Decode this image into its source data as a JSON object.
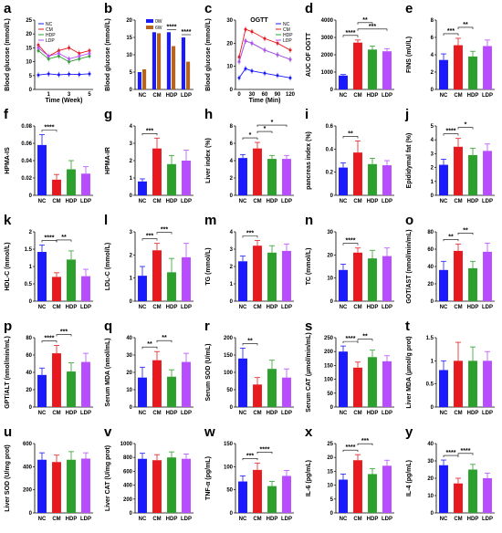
{
  "figure": {
    "colors": {
      "NC": "#1a1aff",
      "CM": "#e8191e",
      "HDP": "#2ca02c",
      "LDP": "#b84dff"
    },
    "categories": [
      "NC",
      "CM",
      "HDP",
      "LDP"
    ]
  },
  "chart_data": [
    {
      "id": "a",
      "type": "line",
      "ylabel": "Blood glucose (mmol/L)",
      "xlabel": "Time (Week)",
      "x": [
        0,
        1,
        2,
        3,
        4,
        5
      ],
      "xticks": [
        "1",
        "3",
        "5"
      ],
      "xtick_values": [
        1,
        3,
        5
      ],
      "ylim": [
        0,
        25
      ],
      "yticks": [
        0,
        5,
        10,
        15,
        20,
        25
      ],
      "legend": [
        "NC",
        "CM",
        "HDP",
        "LDP"
      ],
      "series": [
        {
          "name": "NC",
          "values": [
            5.2,
            5.6,
            5.3,
            5.5,
            5.4,
            5.6
          ]
        },
        {
          "name": "CM",
          "values": [
            16,
            12,
            14,
            15,
            13,
            14
          ]
        },
        {
          "name": "HDP",
          "values": [
            14,
            11,
            12,
            10,
            11,
            12
          ]
        },
        {
          "name": "LDP",
          "values": [
            15,
            12,
            13,
            11,
            12,
            13
          ]
        }
      ]
    },
    {
      "id": "b",
      "type": "bar",
      "ylabel": "Blood glucose (mmol/L)",
      "categories": [
        "NC",
        "CM",
        "HDP",
        "LDP"
      ],
      "ylim": [
        0,
        20
      ],
      "yticks": [
        0,
        5,
        10,
        15,
        20
      ],
      "legend": [
        "0W",
        "6W"
      ],
      "series": [
        {
          "name": "0W",
          "values": [
            5.0,
            16.5,
            16.5,
            15.0
          ],
          "color": "#1a1aff"
        },
        {
          "name": "6W",
          "values": [
            5.8,
            16.2,
            12.5,
            8.0
          ],
          "color": "#b5651d"
        }
      ],
      "sig": [
        {
          "label": "****",
          "from": 2,
          "to": 2
        },
        {
          "label": "****",
          "from": 3,
          "to": 3
        }
      ]
    },
    {
      "id": "c",
      "type": "line",
      "ylabel": "Blood glucose (mmol/L)",
      "xlabel": "Time (Min)",
      "title": "OGTT",
      "x": [
        0,
        15,
        30,
        60,
        90,
        120
      ],
      "xticks": [
        "0",
        "30",
        "60",
        "90",
        "120"
      ],
      "xtick_values": [
        0,
        30,
        60,
        90,
        120
      ],
      "ylim": [
        0,
        30
      ],
      "yticks": [
        0,
        10,
        20,
        30
      ],
      "legend": [
        "NC",
        "CM",
        "HDP",
        "LDP"
      ],
      "series": [
        {
          "name": "NC",
          "values": [
            5,
            9,
            8,
            7,
            6,
            5
          ]
        },
        {
          "name": "CM",
          "values": [
            14,
            26,
            25,
            22,
            20,
            17
          ]
        },
        {
          "name": "HDP",
          "values": [
            12,
            21,
            20,
            17,
            15,
            13
          ]
        },
        {
          "name": "LDP",
          "values": [
            12,
            21,
            20,
            17,
            15,
            13
          ]
        }
      ]
    },
    {
      "id": "d",
      "type": "bar",
      "ylabel": "AUC OF OGTT",
      "ylim": [
        0,
        4000
      ],
      "yticks": [
        0,
        1000,
        2000,
        3000,
        4000
      ],
      "values": [
        800,
        2700,
        2300,
        2200
      ],
      "errors": [
        60,
        150,
        200,
        150
      ],
      "sig": [
        {
          "label": "****",
          "from": 0,
          "to": 1
        },
        {
          "label": "***",
          "from": 1,
          "to": 3
        },
        {
          "label": "**",
          "from": 1,
          "to": 2
        }
      ]
    },
    {
      "id": "e",
      "type": "bar",
      "ylabel": "FINS (mU/L)",
      "ylim": [
        0,
        8
      ],
      "yticks": [
        0,
        2,
        4,
        6,
        8
      ],
      "values": [
        3.4,
        5.1,
        3.8,
        5.0
      ],
      "errors": [
        0.7,
        0.8,
        0.6,
        0.7
      ],
      "sig": [
        {
          "label": "***",
          "from": 0,
          "to": 1
        },
        {
          "label": "**",
          "from": 1,
          "to": 2
        }
      ]
    },
    {
      "id": "f",
      "type": "bar",
      "ylabel": "HPMA-IS",
      "ylim": [
        0,
        0.08
      ],
      "yticks": [
        0,
        0.02,
        0.04,
        0.06,
        0.08
      ],
      "values": [
        0.058,
        0.018,
        0.03,
        0.025
      ],
      "errors": [
        0.012,
        0.006,
        0.01,
        0.008
      ],
      "sig": [
        {
          "label": "****",
          "from": 0,
          "to": 1
        }
      ]
    },
    {
      "id": "g",
      "type": "bar",
      "ylabel": "HPMA-IR",
      "ylim": [
        0,
        4
      ],
      "yticks": [
        0,
        1,
        2,
        3,
        4
      ],
      "values": [
        0.8,
        2.7,
        1.8,
        2.0
      ],
      "errors": [
        0.15,
        0.6,
        0.5,
        0.6
      ],
      "sig": [
        {
          "label": "***",
          "from": 0,
          "to": 1
        }
      ]
    },
    {
      "id": "h",
      "type": "bar",
      "ylabel": "Liver index (%)",
      "ylim": [
        0,
        8
      ],
      "yticks": [
        0,
        2,
        4,
        6,
        8
      ],
      "values": [
        4.3,
        5.4,
        4.2,
        4.2
      ],
      "errors": [
        0.4,
        0.7,
        0.4,
        0.4
      ],
      "sig": [
        {
          "label": "*",
          "from": 0,
          "to": 1
        },
        {
          "label": "*",
          "from": 1,
          "to": 2
        },
        {
          "label": "*",
          "from": 1,
          "to": 3
        }
      ]
    },
    {
      "id": "i",
      "type": "bar",
      "ylabel": "pancreas index (%)",
      "ylim": [
        0,
        0.6
      ],
      "yticks": [
        0,
        0.2,
        0.4,
        0.6
      ],
      "values": [
        0.24,
        0.37,
        0.27,
        0.26
      ],
      "errors": [
        0.04,
        0.1,
        0.05,
        0.04
      ],
      "sig": [
        {
          "label": "**",
          "from": 0,
          "to": 1
        }
      ]
    },
    {
      "id": "j",
      "type": "bar",
      "ylabel": "Epididymal fat (%)",
      "ylim": [
        0,
        5
      ],
      "yticks": [
        0,
        1,
        2,
        3,
        4,
        5
      ],
      "values": [
        2.2,
        3.5,
        2.9,
        3.2
      ],
      "errors": [
        0.4,
        0.6,
        0.5,
        0.5
      ],
      "sig": [
        {
          "label": "****",
          "from": 0,
          "to": 1
        },
        {
          "label": "*",
          "from": 1,
          "to": 2
        }
      ]
    },
    {
      "id": "k",
      "type": "bar",
      "ylabel": "HDL-C (mmol/L)",
      "ylim": [
        0,
        2.0
      ],
      "yticks": [
        0,
        0.5,
        1.0,
        1.5,
        2.0
      ],
      "values": [
        1.42,
        0.7,
        1.2,
        0.72
      ],
      "errors": [
        0.2,
        0.12,
        0.25,
        0.2
      ],
      "sig": [
        {
          "label": "****",
          "from": 0,
          "to": 1
        },
        {
          "label": "**",
          "from": 1,
          "to": 2
        }
      ]
    },
    {
      "id": "l",
      "type": "bar",
      "ylabel": "LDL-C (mmol/L)",
      "ylim": [
        0,
        3
      ],
      "yticks": [
        0,
        1,
        2,
        3
      ],
      "values": [
        1.1,
        2.2,
        1.25,
        1.9
      ],
      "errors": [
        0.4,
        0.3,
        0.6,
        0.6
      ],
      "sig": [
        {
          "label": "***",
          "from": 0,
          "to": 1
        },
        {
          "label": "***",
          "from": 1,
          "to": 2
        }
      ]
    },
    {
      "id": "m",
      "type": "bar",
      "ylabel": "TG (mmol/L)",
      "ylim": [
        0,
        4
      ],
      "yticks": [
        0,
        1,
        2,
        3,
        4
      ],
      "values": [
        2.3,
        3.2,
        2.8,
        2.9
      ],
      "errors": [
        0.3,
        0.3,
        0.4,
        0.4
      ],
      "sig": [
        {
          "label": "***",
          "from": 0,
          "to": 1
        }
      ]
    },
    {
      "id": "n",
      "type": "bar",
      "ylabel": "TC (mmol/L)",
      "ylim": [
        0,
        30
      ],
      "yticks": [
        0,
        10,
        20,
        30
      ],
      "values": [
        13.5,
        21,
        18.5,
        19.5
      ],
      "errors": [
        2.5,
        2.0,
        3.5,
        3.5
      ],
      "sig": [
        {
          "label": "****",
          "from": 0,
          "to": 1
        }
      ]
    },
    {
      "id": "o",
      "type": "bar",
      "ylabel": "GOT/AST (nmol/min/mL)",
      "ylim": [
        0,
        80
      ],
      "yticks": [
        0,
        20,
        40,
        60,
        80
      ],
      "values": [
        36,
        58,
        38,
        57
      ],
      "errors": [
        10,
        8,
        8,
        10
      ],
      "sig": [
        {
          "label": "**",
          "from": 0,
          "to": 1
        },
        {
          "label": "**",
          "from": 1,
          "to": 2
        }
      ]
    },
    {
      "id": "p",
      "type": "bar",
      "ylabel": "GPT/ALT (nmol/min/mL)",
      "ylim": [
        0,
        80
      ],
      "yticks": [
        0,
        20,
        40,
        60,
        80
      ],
      "values": [
        37,
        62,
        41,
        52
      ],
      "errors": [
        8,
        9,
        10,
        10
      ],
      "sig": [
        {
          "label": "****",
          "from": 0,
          "to": 1
        },
        {
          "label": "***",
          "from": 1,
          "to": 2
        }
      ]
    },
    {
      "id": "q",
      "type": "bar",
      "ylabel": "Serum MDA (nmol/mL)",
      "ylim": [
        0,
        40
      ],
      "yticks": [
        0,
        10,
        20,
        30,
        40
      ],
      "values": [
        17,
        27,
        17.5,
        26
      ],
      "errors": [
        6,
        5,
        4,
        5
      ],
      "sig": [
        {
          "label": "**",
          "from": 0,
          "to": 1
        },
        {
          "label": "**",
          "from": 1,
          "to": 2
        }
      ]
    },
    {
      "id": "r",
      "type": "bar",
      "ylabel": "Serum SOD (U/mL)",
      "ylim": [
        0,
        200
      ],
      "yticks": [
        0,
        50,
        100,
        150,
        200
      ],
      "values": [
        140,
        65,
        110,
        85
      ],
      "errors": [
        30,
        20,
        25,
        25
      ],
      "sig": [
        {
          "label": "**",
          "from": 0,
          "to": 1
        }
      ]
    },
    {
      "id": "s",
      "type": "bar",
      "ylabel": "Serum CAT (µmol/min/mL)",
      "ylim": [
        0,
        250
      ],
      "yticks": [
        0,
        50,
        100,
        150,
        200,
        250
      ],
      "values": [
        200,
        142,
        180,
        165
      ],
      "errors": [
        20,
        20,
        25,
        20
      ],
      "sig": [
        {
          "label": "****",
          "from": 0,
          "to": 1
        },
        {
          "label": "**",
          "from": 1,
          "to": 2
        }
      ]
    },
    {
      "id": "t",
      "type": "bar",
      "ylabel": "Liver MDA (µmol/g prot)",
      "ylim": [
        0,
        1.5
      ],
      "yticks": [
        0,
        0.5,
        1.0,
        1.5
      ],
      "values": [
        0.8,
        1.0,
        1.0,
        1.0
      ],
      "errors": [
        0.2,
        0.4,
        0.3,
        0.2
      ],
      "sig": []
    },
    {
      "id": "u",
      "type": "bar",
      "ylabel": "Liver SOD (U/mg prot)",
      "ylim": [
        0,
        600
      ],
      "yticks": [
        0,
        200,
        400,
        600
      ],
      "values": [
        460,
        440,
        460,
        470
      ],
      "errors": [
        60,
        60,
        70,
        50
      ],
      "sig": []
    },
    {
      "id": "v",
      "type": "bar",
      "ylabel": "Liver CAT (U/mg prot)",
      "ylim": [
        0,
        1000
      ],
      "yticks": [
        0,
        200,
        400,
        600,
        800,
        1000
      ],
      "values": [
        780,
        760,
        800,
        780
      ],
      "errors": [
        80,
        80,
        80,
        70
      ],
      "sig": []
    },
    {
      "id": "w",
      "type": "bar",
      "ylabel": "TNF-α (pg/mL)",
      "ylim": [
        0,
        150
      ],
      "yticks": [
        0,
        50,
        100,
        150
      ],
      "values": [
        68,
        93,
        58,
        80
      ],
      "errors": [
        12,
        15,
        10,
        12
      ],
      "sig": [
        {
          "label": "***",
          "from": 0,
          "to": 1
        },
        {
          "label": "****",
          "from": 1,
          "to": 2
        }
      ]
    },
    {
      "id": "x",
      "type": "bar",
      "ylabel": "IL-6 (pg/mL)",
      "ylim": [
        0,
        25
      ],
      "yticks": [
        0,
        5,
        10,
        15,
        20,
        25
      ],
      "values": [
        12,
        19,
        14,
        17
      ],
      "errors": [
        2,
        2,
        2,
        2
      ],
      "sig": [
        {
          "label": "****",
          "from": 0,
          "to": 1
        },
        {
          "label": "***",
          "from": 1,
          "to": 2
        }
      ]
    },
    {
      "id": "y",
      "type": "bar",
      "ylabel": "IL-4 (pg/mL)",
      "ylim": [
        0,
        40
      ],
      "yticks": [
        0,
        10,
        20,
        30,
        40
      ],
      "values": [
        27.5,
        17,
        25,
        20
      ],
      "errors": [
        3,
        3,
        3,
        3
      ],
      "sig": [
        {
          "label": "****",
          "from": 0,
          "to": 1
        },
        {
          "label": "****",
          "from": 1,
          "to": 2
        }
      ]
    }
  ]
}
